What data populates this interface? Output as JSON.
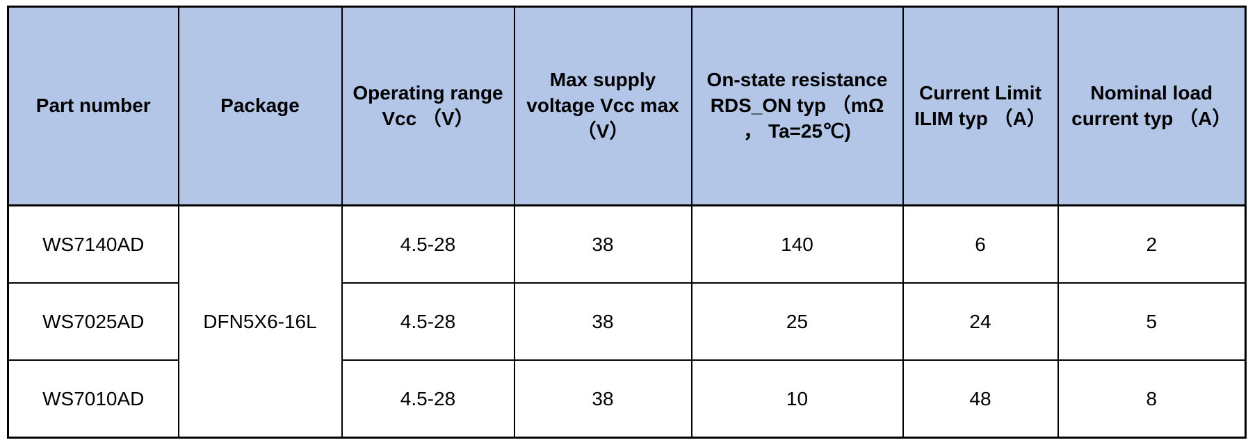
{
  "table": {
    "header_bg": "#b4c6e7",
    "border_color": "#000000",
    "headers": {
      "part": "Part number",
      "package": "Package",
      "vcc_range": "Operating range\nVcc （V）",
      "vcc_max": "Max supply\nvoltage Vcc max\n（V）",
      "rds_on": "On-state resistance\nRDS_ON typ （mΩ\n， Ta=25℃)",
      "ilim": "Current Limit\nILIM typ （A）",
      "inom": "Nominal load\ncurrent typ （A）"
    },
    "package_value": "DFN5X6-16L",
    "rows": [
      {
        "part": "WS7140AD",
        "vcc_range": "4.5-28",
        "vcc_max": "38",
        "rds_on": "140",
        "ilim": "6",
        "inom": "2"
      },
      {
        "part": "WS7025AD",
        "vcc_range": "4.5-28",
        "vcc_max": "38",
        "rds_on": "25",
        "ilim": "24",
        "inom": "5"
      },
      {
        "part": "WS7010AD",
        "vcc_range": "4.5-28",
        "vcc_max": "38",
        "rds_on": "10",
        "ilim": "48",
        "inom": "8"
      }
    ]
  },
  "chart_data": {
    "type": "table",
    "title": "",
    "columns": [
      "Part number",
      "Package",
      "Operating range Vcc （V）",
      "Max supply voltage Vcc max （V）",
      "On-state resistance RDS_ON typ （mΩ， Ta=25℃)",
      "Current Limit ILIM typ （A）",
      "Nominal load current typ （A）"
    ],
    "rows": [
      [
        "WS7140AD",
        "DFN5X6-16L",
        "4.5-28",
        "38",
        "140",
        "6",
        "2"
      ],
      [
        "WS7025AD",
        "DFN5X6-16L",
        "4.5-28",
        "38",
        "25",
        "24",
        "5"
      ],
      [
        "WS7010AD",
        "DFN5X6-16L",
        "4.5-28",
        "38",
        "10",
        "48",
        "8"
      ]
    ],
    "merged_cells": [
      {
        "column": "Package",
        "value": "DFN5X6-16L",
        "row_span": [
          0,
          2
        ]
      }
    ],
    "style_notes": {
      "header_background": "#b4c6e7",
      "body_background": "#ffffff",
      "grid": "all black borders"
    }
  }
}
